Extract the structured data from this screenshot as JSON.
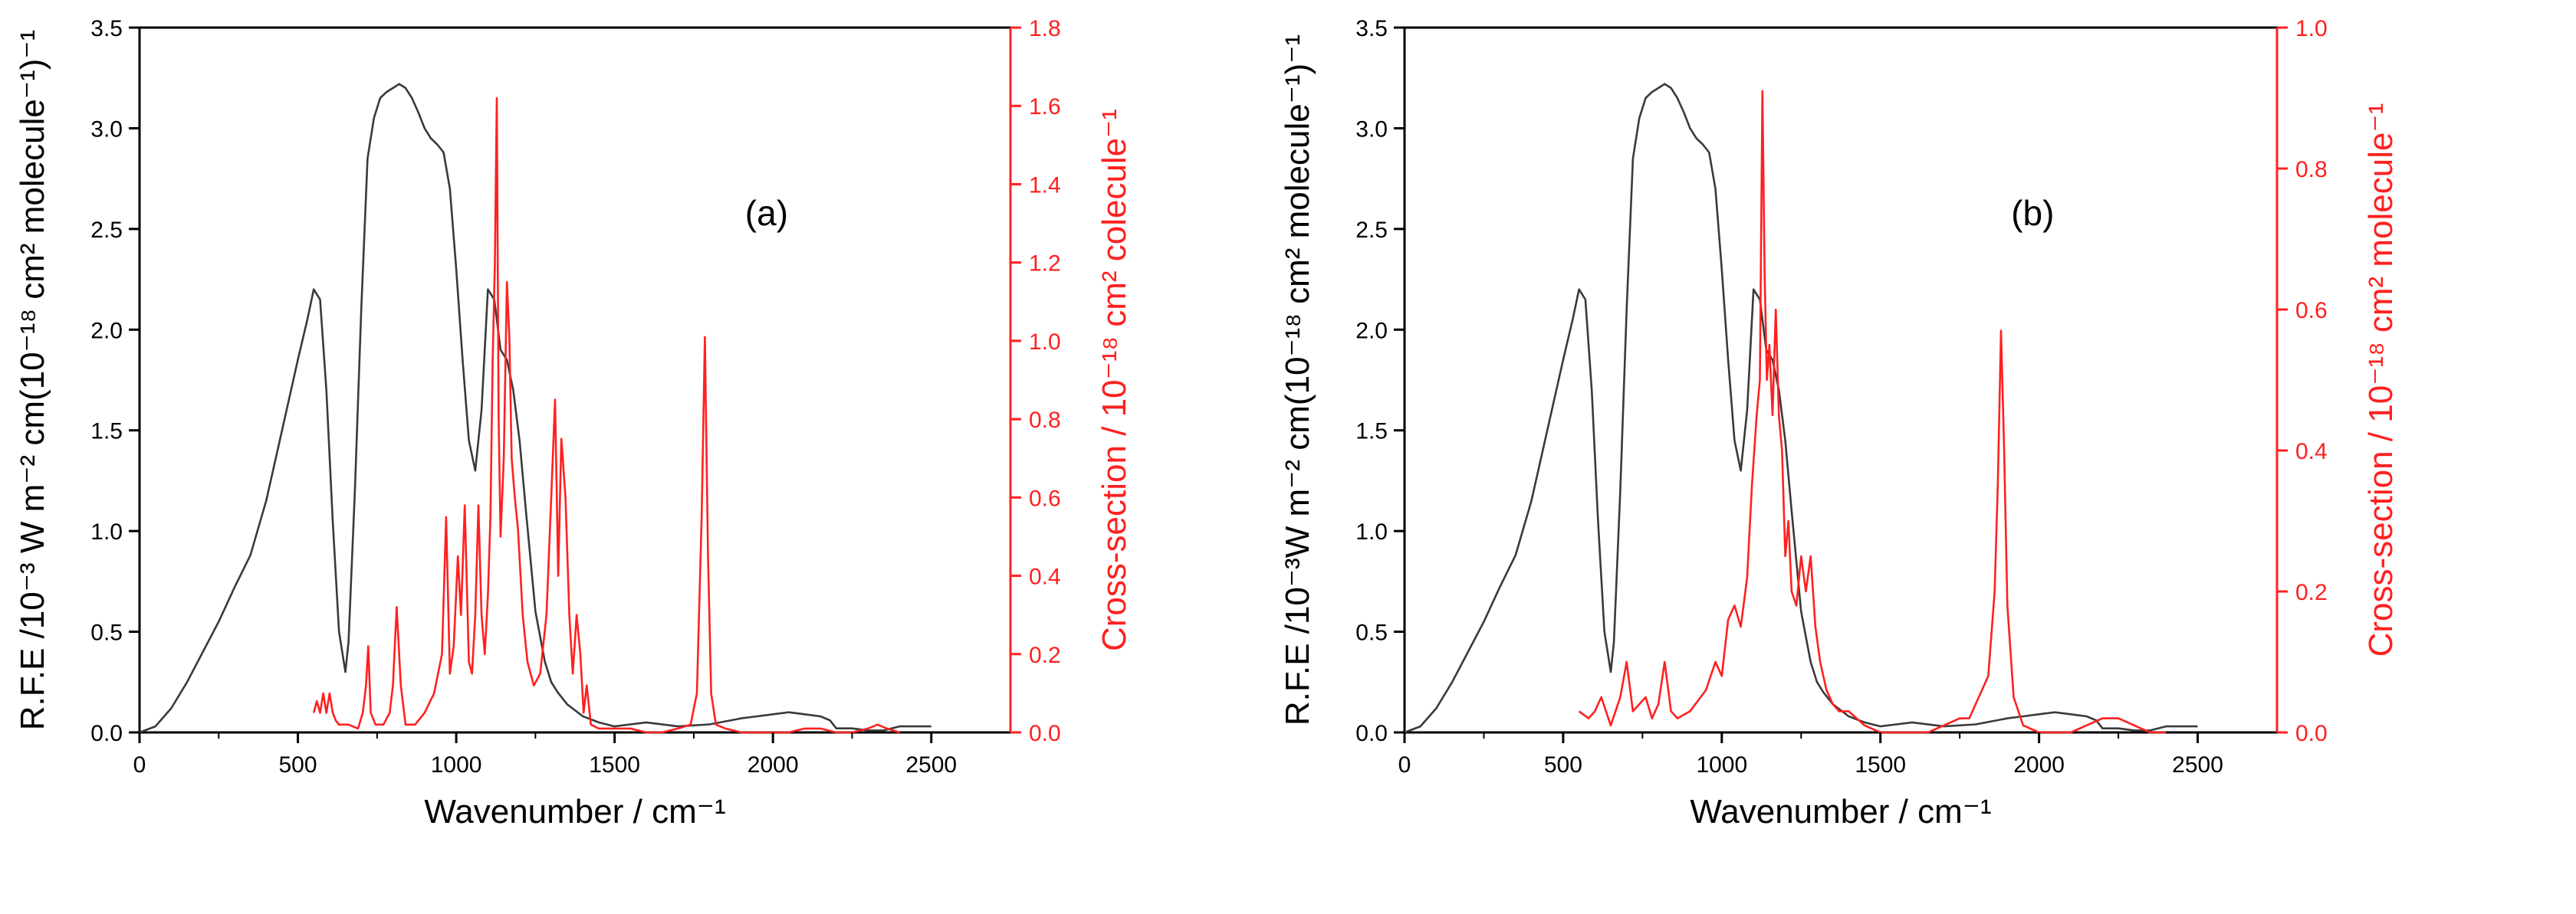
{
  "chart_data": [
    {
      "panel_label": "(a)",
      "type": "line",
      "xlabel": "Wavenumber / cm⁻¹",
      "ylabel_left": "R.F.E /10⁻³ W m⁻² cm(10⁻¹⁸ cm² molecule⁻¹)⁻¹",
      "ylabel_right": "Cross-section / 10⁻¹⁸ cm² colecule⁻¹",
      "xlim": [
        0,
        2750
      ],
      "ylim_left": [
        0,
        3.5
      ],
      "ylim_right": [
        0,
        1.8
      ],
      "x_ticks": [
        0,
        500,
        1000,
        1500,
        2000,
        2500
      ],
      "x_tick_labels": [
        "0",
        "500",
        "1000",
        "1500",
        "2000",
        "2500"
      ],
      "y_left_ticks": [
        0,
        0.5,
        1.0,
        1.5,
        2.0,
        2.5,
        3.0,
        3.5
      ],
      "y_left_tick_labels": [
        "0.0",
        "0.5",
        "1.0",
        "1.5",
        "2.0",
        "2.5",
        "3.0",
        "3.5"
      ],
      "y_right_ticks": [
        0,
        0.2,
        0.4,
        0.6,
        0.8,
        1.0,
        1.2,
        1.4,
        1.6,
        1.8
      ],
      "y_right_tick_labels": [
        "0.0",
        "0.2",
        "0.4",
        "0.6",
        "0.8",
        "1.0",
        "1.2",
        "1.4",
        "1.6",
        "1.8"
      ],
      "series": [
        {
          "name": "R.F.E",
          "axis": "left",
          "color": "#3a3a3a",
          "x": [
            0,
            50,
            100,
            150,
            200,
            250,
            300,
            350,
            400,
            450,
            500,
            530,
            550,
            570,
            590,
            610,
            630,
            650,
            660,
            680,
            700,
            720,
            740,
            760,
            780,
            800,
            820,
            840,
            860,
            880,
            900,
            920,
            940,
            960,
            980,
            1000,
            1020,
            1040,
            1060,
            1080,
            1100,
            1120,
            1140,
            1160,
            1180,
            1200,
            1220,
            1250,
            1280,
            1300,
            1320,
            1350,
            1400,
            1450,
            1500,
            1550,
            1600,
            1700,
            1800,
            1900,
            1950,
            2000,
            2050,
            2100,
            2150,
            2180,
            2200,
            2250,
            2300,
            2350,
            2400,
            2450,
            2500
          ],
          "y": [
            0.0,
            0.03,
            0.12,
            0.25,
            0.4,
            0.55,
            0.72,
            0.88,
            1.15,
            1.5,
            1.85,
            2.05,
            2.2,
            2.15,
            1.7,
            1.05,
            0.5,
            0.3,
            0.45,
            1.2,
            2.1,
            2.85,
            3.05,
            3.15,
            3.18,
            3.2,
            3.22,
            3.2,
            3.15,
            3.08,
            3.0,
            2.95,
            2.92,
            2.88,
            2.7,
            2.3,
            1.85,
            1.45,
            1.3,
            1.6,
            2.2,
            2.15,
            1.9,
            1.85,
            1.7,
            1.45,
            1.1,
            0.6,
            0.35,
            0.25,
            0.2,
            0.14,
            0.08,
            0.05,
            0.03,
            0.04,
            0.05,
            0.03,
            0.04,
            0.07,
            0.08,
            0.09,
            0.1,
            0.09,
            0.08,
            0.06,
            0.02,
            0.02,
            0.01,
            0.01,
            0.03,
            0.03,
            0.03
          ]
        },
        {
          "name": "Cross-section",
          "axis": "right",
          "color": "#ff2020",
          "x": [
            550,
            560,
            570,
            580,
            590,
            600,
            610,
            620,
            630,
            660,
            690,
            705,
            715,
            722,
            730,
            745,
            770,
            790,
            800,
            812,
            825,
            840,
            870,
            900,
            930,
            955,
            968,
            980,
            992,
            1005,
            1015,
            1027,
            1040,
            1050,
            1060,
            1070,
            1080,
            1090,
            1100,
            1108,
            1115,
            1122,
            1128,
            1134,
            1140,
            1150,
            1160,
            1168,
            1175,
            1185,
            1195,
            1210,
            1225,
            1245,
            1265,
            1285,
            1300,
            1312,
            1322,
            1332,
            1345,
            1357,
            1368,
            1380,
            1392,
            1402,
            1412,
            1425,
            1450,
            1500,
            1550,
            1600,
            1650,
            1700,
            1740,
            1760,
            1775,
            1785,
            1795,
            1805,
            1820,
            1850,
            1900,
            1950,
            2000,
            2050,
            2100,
            2150,
            2200,
            2250,
            2300,
            2330,
            2360,
            2400
          ],
          "y": [
            0.05,
            0.08,
            0.05,
            0.1,
            0.05,
            0.1,
            0.05,
            0.03,
            0.02,
            0.02,
            0.01,
            0.05,
            0.12,
            0.22,
            0.05,
            0.02,
            0.02,
            0.05,
            0.12,
            0.32,
            0.12,
            0.02,
            0.02,
            0.05,
            0.1,
            0.2,
            0.55,
            0.15,
            0.22,
            0.45,
            0.3,
            0.58,
            0.18,
            0.15,
            0.3,
            0.58,
            0.3,
            0.2,
            0.35,
            0.55,
            0.95,
            1.2,
            1.62,
            0.8,
            0.5,
            0.7,
            1.15,
            1.0,
            0.7,
            0.6,
            0.52,
            0.3,
            0.18,
            0.12,
            0.15,
            0.3,
            0.6,
            0.85,
            0.4,
            0.75,
            0.6,
            0.3,
            0.15,
            0.3,
            0.2,
            0.05,
            0.12,
            0.02,
            0.01,
            0.01,
            0.01,
            0.0,
            0.0,
            0.01,
            0.02,
            0.1,
            0.55,
            1.01,
            0.45,
            0.1,
            0.02,
            0.01,
            0.0,
            0.0,
            0.0,
            0.0,
            0.01,
            0.01,
            0.0,
            0.0,
            0.01,
            0.02,
            0.01,
            0.0
          ]
        }
      ]
    },
    {
      "panel_label": "(b)",
      "type": "line",
      "xlabel": "Wavenumber / cm⁻¹",
      "ylabel_left": "R.F.E /10⁻³W m⁻² cm(10⁻¹⁸ cm² molecule⁻¹)⁻¹",
      "ylabel_right": "Cross-section / 10⁻¹⁸ cm² molecule⁻¹",
      "xlim": [
        0,
        2750
      ],
      "ylim_left": [
        0,
        3.5
      ],
      "ylim_right": [
        0,
        1.0
      ],
      "x_ticks": [
        0,
        500,
        1000,
        1500,
        2000,
        2500
      ],
      "x_tick_labels": [
        "0",
        "500",
        "1000",
        "1500",
        "2000",
        "2500"
      ],
      "y_left_ticks": [
        0,
        0.5,
        1.0,
        1.5,
        2.0,
        2.5,
        3.0,
        3.5
      ],
      "y_left_tick_labels": [
        "0.0",
        "0.5",
        "1.0",
        "1.5",
        "2.0",
        "2.5",
        "3.0",
        "3.5"
      ],
      "y_right_ticks": [
        0,
        0.2,
        0.4,
        0.6,
        0.8,
        1.0
      ],
      "y_right_tick_labels": [
        "0.0",
        "0.2",
        "0.4",
        "0.6",
        "0.8",
        "1.0"
      ],
      "series": [
        {
          "name": "R.F.E",
          "axis": "left",
          "color": "#3a3a3a",
          "x": [
            0,
            50,
            100,
            150,
            200,
            250,
            300,
            350,
            400,
            450,
            500,
            530,
            550,
            570,
            590,
            610,
            630,
            650,
            660,
            680,
            700,
            720,
            740,
            760,
            780,
            800,
            820,
            840,
            860,
            880,
            900,
            920,
            940,
            960,
            980,
            1000,
            1020,
            1040,
            1060,
            1080,
            1100,
            1120,
            1140,
            1160,
            1180,
            1200,
            1220,
            1250,
            1280,
            1300,
            1320,
            1350,
            1400,
            1450,
            1500,
            1550,
            1600,
            1700,
            1800,
            1900,
            1950,
            2000,
            2050,
            2100,
            2150,
            2180,
            2200,
            2250,
            2300,
            2350,
            2400,
            2450,
            2500
          ],
          "y": [
            0.0,
            0.03,
            0.12,
            0.25,
            0.4,
            0.55,
            0.72,
            0.88,
            1.15,
            1.5,
            1.85,
            2.05,
            2.2,
            2.15,
            1.7,
            1.05,
            0.5,
            0.3,
            0.45,
            1.2,
            2.1,
            2.85,
            3.05,
            3.15,
            3.18,
            3.2,
            3.22,
            3.2,
            3.15,
            3.08,
            3.0,
            2.95,
            2.92,
            2.88,
            2.7,
            2.3,
            1.85,
            1.45,
            1.3,
            1.6,
            2.2,
            2.15,
            1.9,
            1.85,
            1.7,
            1.45,
            1.1,
            0.6,
            0.35,
            0.25,
            0.2,
            0.14,
            0.08,
            0.05,
            0.03,
            0.04,
            0.05,
            0.03,
            0.04,
            0.07,
            0.08,
            0.09,
            0.1,
            0.09,
            0.08,
            0.06,
            0.02,
            0.02,
            0.01,
            0.01,
            0.03,
            0.03,
            0.03
          ]
        },
        {
          "name": "Cross-section",
          "axis": "right",
          "color": "#ff2020",
          "x": [
            550,
            580,
            600,
            620,
            650,
            680,
            700,
            720,
            740,
            760,
            780,
            800,
            820,
            840,
            860,
            900,
            950,
            980,
            1000,
            1020,
            1040,
            1060,
            1080,
            1095,
            1110,
            1120,
            1128,
            1135,
            1142,
            1150,
            1160,
            1170,
            1180,
            1190,
            1200,
            1210,
            1220,
            1235,
            1250,
            1265,
            1280,
            1295,
            1310,
            1330,
            1350,
            1370,
            1400,
            1450,
            1500,
            1550,
            1600,
            1650,
            1700,
            1750,
            1780,
            1810,
            1840,
            1860,
            1870,
            1880,
            1890,
            1900,
            1920,
            1950,
            2000,
            2050,
            2100,
            2150,
            2200,
            2250,
            2300,
            2350,
            2400
          ],
          "y": [
            0.03,
            0.02,
            0.03,
            0.05,
            0.01,
            0.05,
            0.1,
            0.03,
            0.04,
            0.05,
            0.02,
            0.04,
            0.1,
            0.03,
            0.02,
            0.03,
            0.06,
            0.1,
            0.08,
            0.16,
            0.18,
            0.15,
            0.22,
            0.35,
            0.45,
            0.5,
            0.91,
            0.65,
            0.5,
            0.55,
            0.45,
            0.6,
            0.45,
            0.4,
            0.25,
            0.3,
            0.2,
            0.18,
            0.25,
            0.2,
            0.25,
            0.15,
            0.1,
            0.06,
            0.04,
            0.03,
            0.03,
            0.01,
            0.0,
            0.0,
            0.0,
            0.0,
            0.01,
            0.02,
            0.02,
            0.05,
            0.08,
            0.2,
            0.35,
            0.57,
            0.4,
            0.18,
            0.05,
            0.01,
            0.0,
            0.0,
            0.0,
            0.01,
            0.02,
            0.02,
            0.01,
            0.0,
            0.0
          ]
        }
      ]
    }
  ]
}
